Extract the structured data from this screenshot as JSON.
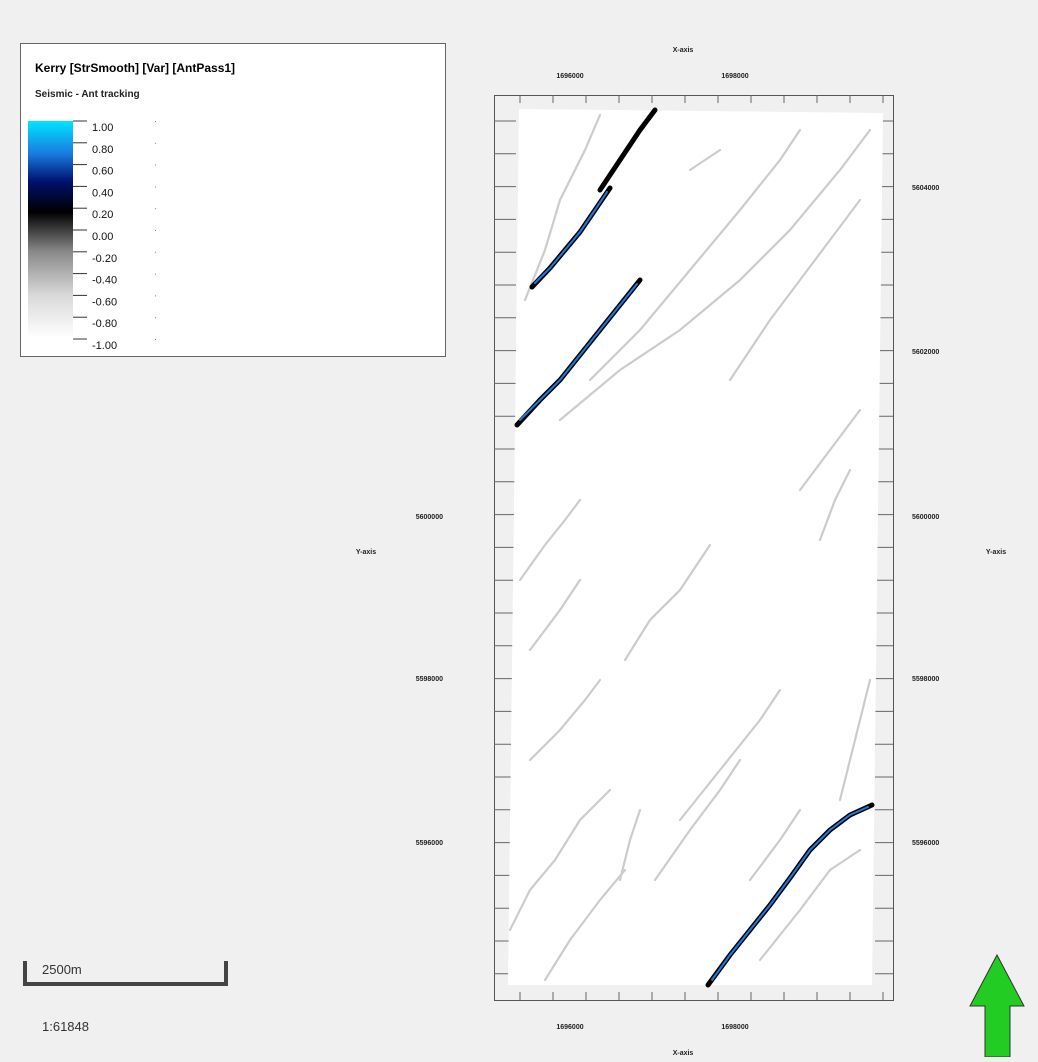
{
  "legend": {
    "title": "Kerry [StrSmooth] [Var] [AntPass1]",
    "subtitle": "Seismic - Ant tracking",
    "labels": [
      "1.00",
      "0.80",
      "0.60",
      "0.40",
      "0.20",
      "0.00",
      "-0.20",
      "-0.40",
      "-0.60",
      "-0.80",
      "-1.00"
    ]
  },
  "axes": {
    "x_label": "X-axis",
    "y_label": "Y-axis",
    "x_ticks": [
      "1696000",
      "1698000"
    ],
    "y_ticks": [
      "5604000",
      "5602000",
      "5600000",
      "5598000",
      "5596000"
    ]
  },
  "scale_bar": {
    "label": "2500m",
    "ratio": "1:61848"
  }
}
